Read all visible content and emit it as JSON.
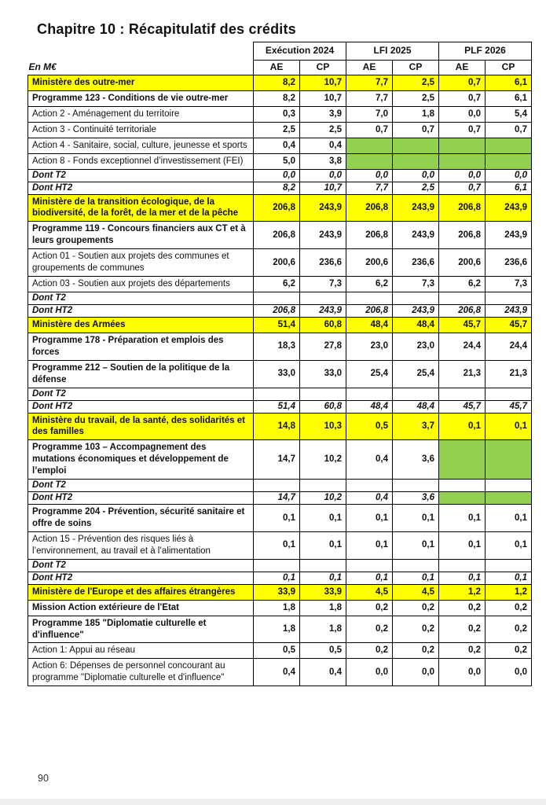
{
  "page": {
    "title": "Chapitre 10 : Récapitulatif des crédits",
    "unit_label": "En M€",
    "page_number": "90"
  },
  "colors": {
    "ministry_highlight": "#FFFF00",
    "empty_cell_highlight": "#92D050"
  },
  "table": {
    "col_groups": [
      "Exécution 2024",
      "LFI 2025",
      "PLF 2026"
    ],
    "sub_headers": [
      "AE",
      "CP",
      "AE",
      "CP",
      "AE",
      "CP"
    ],
    "rows": [
      {
        "label": "Ministère des outre-mer",
        "style": "ministry",
        "cells": [
          "8,2",
          "10,7",
          "7,7",
          "2,5",
          "0,7",
          "6,1"
        ]
      },
      {
        "label": "Programme 123 - Conditions de vie outre-mer",
        "style": "programme",
        "cells": [
          "8,2",
          "10,7",
          "7,7",
          "2,5",
          "0,7",
          "6,1"
        ]
      },
      {
        "label": "Action 2 - Aménagement du territoire",
        "style": "action",
        "cells": [
          "0,3",
          "3,9",
          "7,0",
          "1,8",
          "0,0",
          "5,4"
        ]
      },
      {
        "label": "Action 3 -  Continuité territoriale",
        "style": "action",
        "cells": [
          "2,5",
          "2,5",
          "0,7",
          "0,7",
          "0,7",
          "0,7"
        ]
      },
      {
        "label": "Action 4 - Sanitaire, social, culture, jeunesse et sports",
        "style": "action",
        "cells": [
          "0,4",
          "0,4",
          "",
          "",
          "",
          ""
        ],
        "green": [
          2,
          3,
          4,
          5
        ]
      },
      {
        "label": "Action 8 - Fonds exceptionnel d’investissement (FEI)",
        "style": "action",
        "cells": [
          "5,0",
          "3,8",
          "",
          "",
          "",
          ""
        ],
        "green": [
          2,
          3,
          4,
          5
        ]
      },
      {
        "label": "Dont T2",
        "style": "dont",
        "cells": [
          "0,0",
          "0,0",
          "0,0",
          "0,0",
          "0,0",
          "0,0"
        ]
      },
      {
        "label": "Dont HT2",
        "style": "dont",
        "cells": [
          "8,2",
          "10,7",
          "7,7",
          "2,5",
          "0,7",
          "6,1"
        ]
      },
      {
        "label": "Ministère de la transition écologique, de la biodiversité, de la forêt, de la mer et de la pêche",
        "style": "ministry",
        "cells": [
          "206,8",
          "243,9",
          "206,8",
          "243,9",
          "206,8",
          "243,9"
        ]
      },
      {
        "label": "Programme 119 - Concours financiers aux CT et à leurs groupements",
        "style": "programme",
        "cells": [
          "206,8",
          "243,9",
          "206,8",
          "243,9",
          "206,8",
          "243,9"
        ]
      },
      {
        "label": "Action 01 - Soutien aux projets des communes et groupements de communes",
        "style": "action",
        "cells": [
          "200,6",
          "236,6",
          "200,6",
          "236,6",
          "200,6",
          "236,6"
        ]
      },
      {
        "label": "Action 03 - Soutien aux projets des départements",
        "style": "action",
        "cells": [
          "6,2",
          "7,3",
          "6,2",
          "7,3",
          "6,2",
          "7,3"
        ]
      },
      {
        "label": "Dont T2",
        "style": "dont",
        "cells": [
          "",
          "",
          "",
          "",
          "",
          ""
        ]
      },
      {
        "label": "Dont HT2",
        "style": "dont",
        "cells": [
          "206,8",
          "243,9",
          "206,8",
          "243,9",
          "206,8",
          "243,9"
        ]
      },
      {
        "label": "Ministère des Armées",
        "style": "ministry",
        "cells": [
          "51,4",
          "60,8",
          "48,4",
          "48,4",
          "45,7",
          "45,7"
        ]
      },
      {
        "label": "Programme 178 - Préparation et emplois des forces",
        "style": "programme",
        "cells": [
          "18,3",
          "27,8",
          "23,0",
          "23,0",
          "24,4",
          "24,4"
        ]
      },
      {
        "label": "Programme 212 – Soutien de la politique de la défense",
        "style": "programme",
        "cells": [
          "33,0",
          "33,0",
          "25,4",
          "25,4",
          "21,3",
          "21,3"
        ]
      },
      {
        "label": "Dont T2",
        "style": "dont",
        "cells": [
          "",
          "",
          "",
          "",
          "",
          ""
        ]
      },
      {
        "label": "Dont HT2",
        "style": "dont",
        "cells": [
          "51,4",
          "60,8",
          "48,4",
          "48,4",
          "45,7",
          "45,7"
        ]
      },
      {
        "label": "Ministère du travail, de la santé, des solidarités et des familles",
        "style": "ministry",
        "cells": [
          "14,8",
          "10,3",
          "0,5",
          "3,7",
          "0,1",
          "0,1"
        ]
      },
      {
        "label": "Programme 103 – Accompagnement des mutations économiques et développement de l’emploi",
        "style": "programme",
        "cells": [
          "14,7",
          "10,2",
          "0,4",
          "3,6",
          "",
          ""
        ],
        "green": [
          4,
          5
        ]
      },
      {
        "label": "Dont T2",
        "style": "dont",
        "cells": [
          "",
          "",
          "",
          "",
          "",
          ""
        ]
      },
      {
        "label": "Dont HT2",
        "style": "dont",
        "cells": [
          "14,7",
          "10,2",
          "0,4",
          "3,6",
          "",
          ""
        ],
        "green": [
          4,
          5
        ]
      },
      {
        "label": "Programme 204 - Prévention, sécurité sanitaire et offre de soins",
        "style": "programme",
        "cells": [
          "0,1",
          "0,1",
          "0,1",
          "0,1",
          "0,1",
          "0,1"
        ]
      },
      {
        "label": "Action 15 - Prévention des risques liés à l’environnement, au travail et à l’alimentation",
        "style": "action",
        "cells": [
          "0,1",
          "0,1",
          "0,1",
          "0,1",
          "0,1",
          "0,1"
        ]
      },
      {
        "label": "Dont T2",
        "style": "dont",
        "cells": [
          "",
          "",
          "",
          "",
          "",
          ""
        ]
      },
      {
        "label": "Dont HT2",
        "style": "dont",
        "cells": [
          "0,1",
          "0,1",
          "0,1",
          "0,1",
          "0,1",
          "0,1"
        ]
      },
      {
        "label": "Ministère de l'Europe et des affaires étrangères",
        "style": "ministry",
        "cells": [
          "33,9",
          "33,9",
          "4,5",
          "4,5",
          "1,2",
          "1,2"
        ]
      },
      {
        "label": "Mission Action extérieure de l'Etat",
        "style": "mission",
        "cells": [
          "1,8",
          "1,8",
          "0,2",
          "0,2",
          "0,2",
          "0,2"
        ]
      },
      {
        "label": "Programme 185 \"Diplomatie culturelle et d'influence\"",
        "style": "programme",
        "cells": [
          "1,8",
          "1,8",
          "0,2",
          "0,2",
          "0,2",
          "0,2"
        ]
      },
      {
        "label": "Action 1: Appui au réseau",
        "style": "action",
        "cells": [
          "0,5",
          "0,5",
          "0,2",
          "0,2",
          "0,2",
          "0,2"
        ]
      },
      {
        "label": "Action 6: Dépenses de personnel concourant au programme \"Diplomatie culturelle et d'influence\"",
        "style": "action",
        "cells": [
          "0,4",
          "0,4",
          "0,0",
          "0,0",
          "0,0",
          "0,0"
        ]
      }
    ]
  }
}
